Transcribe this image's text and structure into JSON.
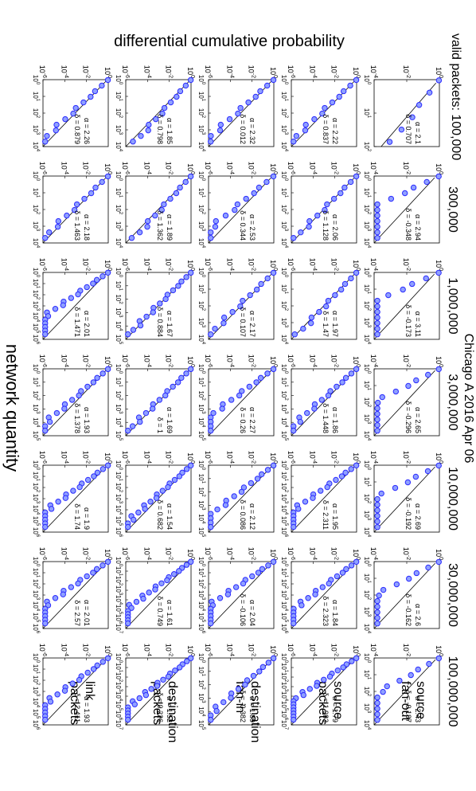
{
  "figure": {
    "title_line1": "Chicago A 2016 Apr 06",
    "row_axis_title": "differential cumulative probability",
    "col_axis_title": "network quantity",
    "valid_packets_prefix": "valid packets:"
  },
  "chart_data": {
    "type": "scatter",
    "scale": "log-log",
    "marker_color": "#2b2bff",
    "fit_color": "#000000",
    "columns": [
      "100,000",
      "300,000",
      "1,000,000",
      "3,000,000",
      "10,000,000",
      "30,000,000",
      "100,000,000"
    ],
    "rows": [
      {
        "label_lines": [
          "source",
          "fan-out"
        ],
        "y_ticks": [
          0,
          -2,
          -4
        ],
        "x_max": [
          2,
          4,
          4,
          4,
          4,
          4,
          4
        ],
        "alpha": [
          "2.1",
          "2.94",
          "3.11",
          "2.65",
          "2.69",
          "2.6",
          "2.43"
        ],
        "delta": [
          "0.707",
          "-0.348",
          "-0.173",
          "-0.296",
          "-0.192",
          "-0.162",
          "-0.187"
        ]
      },
      {
        "label_lines": [
          "source",
          "packets"
        ],
        "y_ticks": [
          0,
          -2,
          -4,
          -6
        ],
        "x_max": [
          4,
          4,
          4,
          5,
          6,
          6,
          7
        ],
        "alpha": [
          "2.22",
          "2.06",
          "1.97",
          "1.86",
          "1.95",
          "1.84",
          "1.79"
        ],
        "delta": [
          "0.837",
          "1.128",
          "1.47",
          "1.448",
          "2.311",
          "2.323",
          "1.983"
        ]
      },
      {
        "label_lines": [
          "destination",
          "fan-in"
        ],
        "y_ticks": [
          0,
          -2,
          -4,
          -6
        ],
        "x_max": [
          4,
          4,
          4,
          5,
          5,
          6,
          5
        ],
        "alpha": [
          "2.32",
          "2.53",
          "2.17",
          "2.27",
          "2.12",
          "2.04",
          "1.89"
        ],
        "delta": [
          "0.012",
          "0.344",
          "0.107",
          "0.26",
          "0.086",
          "-0.106",
          "-0.382"
        ]
      },
      {
        "label_lines": [
          "destination",
          "packets"
        ],
        "y_ticks": [
          0,
          -2,
          -4,
          -6
        ],
        "x_max": [
          4,
          4,
          5,
          5,
          6,
          7,
          7
        ],
        "alpha": [
          "1.85",
          "1.89",
          "1.67",
          "1.69",
          "1.54",
          "1.61",
          "1.52"
        ],
        "delta": [
          "0.798",
          "1.362",
          "0.884",
          "1",
          "0.682",
          "0.749",
          "0.226"
        ]
      },
      {
        "label_lines": [
          "link",
          "packets"
        ],
        "y_ticks": [
          0,
          -2,
          -4,
          -6
        ],
        "x_max": [
          4,
          4,
          6,
          5,
          6,
          6,
          6
        ],
        "alpha": [
          "2.26",
          "2.18",
          "2.01",
          "1.93",
          "1.9",
          "2.01",
          "1.93"
        ],
        "delta": [
          "0.879",
          "1.463",
          "1.471",
          "1.378",
          "1.74",
          "2.57",
          "2.411"
        ]
      }
    ]
  }
}
